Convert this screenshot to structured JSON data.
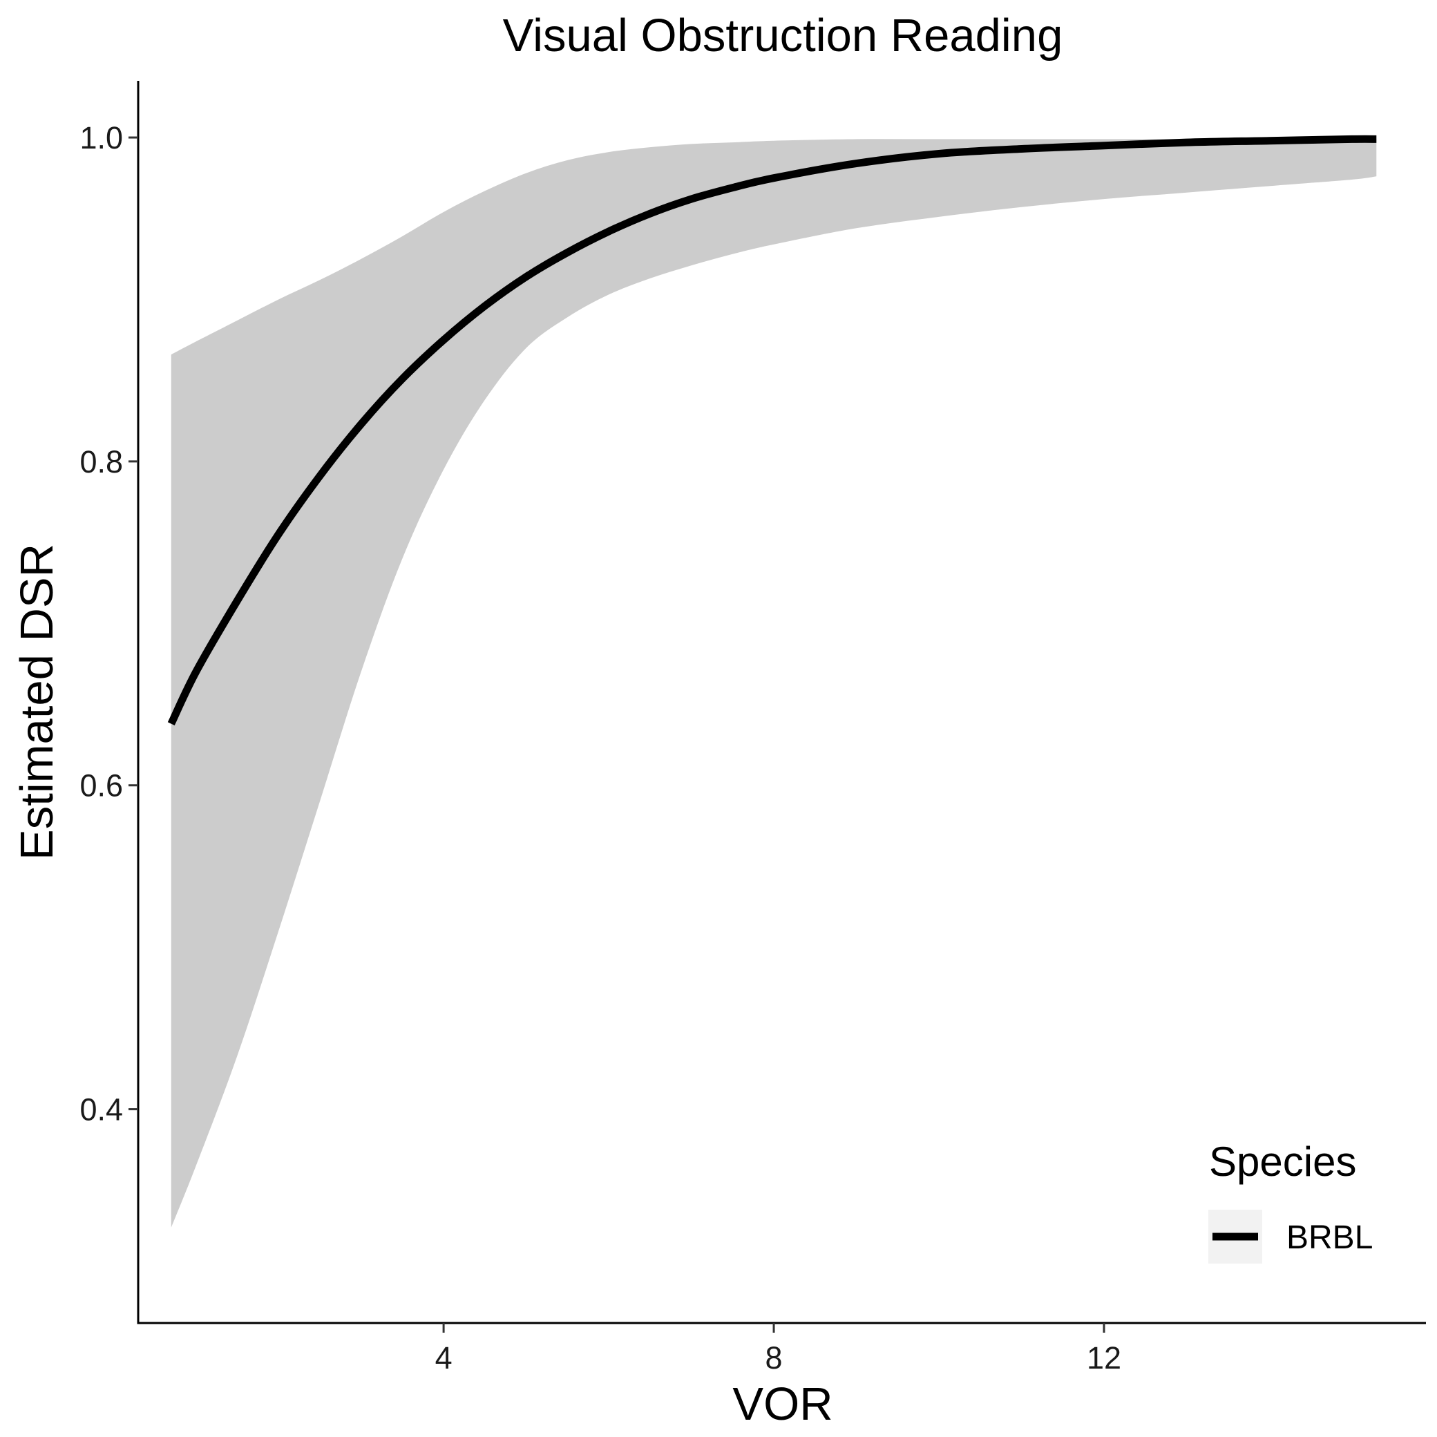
{
  "chart_data": {
    "type": "line",
    "title": "Visual Obstruction Reading",
    "xlabel": "VOR",
    "ylabel": "Estimated DSR",
    "xlim": [
      0.3,
      15.9
    ],
    "ylim": [
      0.268,
      1.035
    ],
    "x_ticks": [
      4,
      8,
      12
    ],
    "y_ticks": [
      0.4,
      0.6,
      0.8,
      1.0
    ],
    "x_tick_labels": [
      "4",
      "8",
      "12"
    ],
    "y_tick_labels": [
      "0.4",
      "0.6",
      "0.8",
      "1.0"
    ],
    "grid": false,
    "legend": {
      "title": "Species",
      "position": "bottom-right",
      "entries": [
        "BRBL"
      ]
    },
    "series": [
      {
        "name": "BRBL",
        "color": "#000000",
        "ribbon_color": "#cccccc",
        "x": [
          0.7,
          1.0,
          1.5,
          2.0,
          2.5,
          3.0,
          3.5,
          4.0,
          4.5,
          5.0,
          5.5,
          6.0,
          6.5,
          7.0,
          7.5,
          8.0,
          9.0,
          10.0,
          11.0,
          12.0,
          13.0,
          14.0,
          15.0,
          15.3
        ],
        "y": [
          0.638,
          0.67,
          0.714,
          0.755,
          0.791,
          0.823,
          0.851,
          0.875,
          0.896,
          0.914,
          0.929,
          0.942,
          0.953,
          0.962,
          0.969,
          0.975,
          0.984,
          0.99,
          0.993,
          0.995,
          0.997,
          0.998,
          0.999,
          0.999
        ],
        "lower": [
          0.327,
          0.365,
          0.433,
          0.51,
          0.59,
          0.67,
          0.74,
          0.795,
          0.838,
          0.87,
          0.889,
          0.903,
          0.913,
          0.921,
          0.928,
          0.934,
          0.944,
          0.951,
          0.957,
          0.962,
          0.966,
          0.97,
          0.974,
          0.976
        ],
        "upper": [
          0.866,
          0.874,
          0.887,
          0.9,
          0.912,
          0.925,
          0.939,
          0.954,
          0.967,
          0.978,
          0.986,
          0.991,
          0.994,
          0.996,
          0.997,
          0.998,
          0.999,
          0.999,
          0.999,
          0.999,
          0.999,
          0.999,
          0.999,
          0.999
        ]
      }
    ]
  }
}
